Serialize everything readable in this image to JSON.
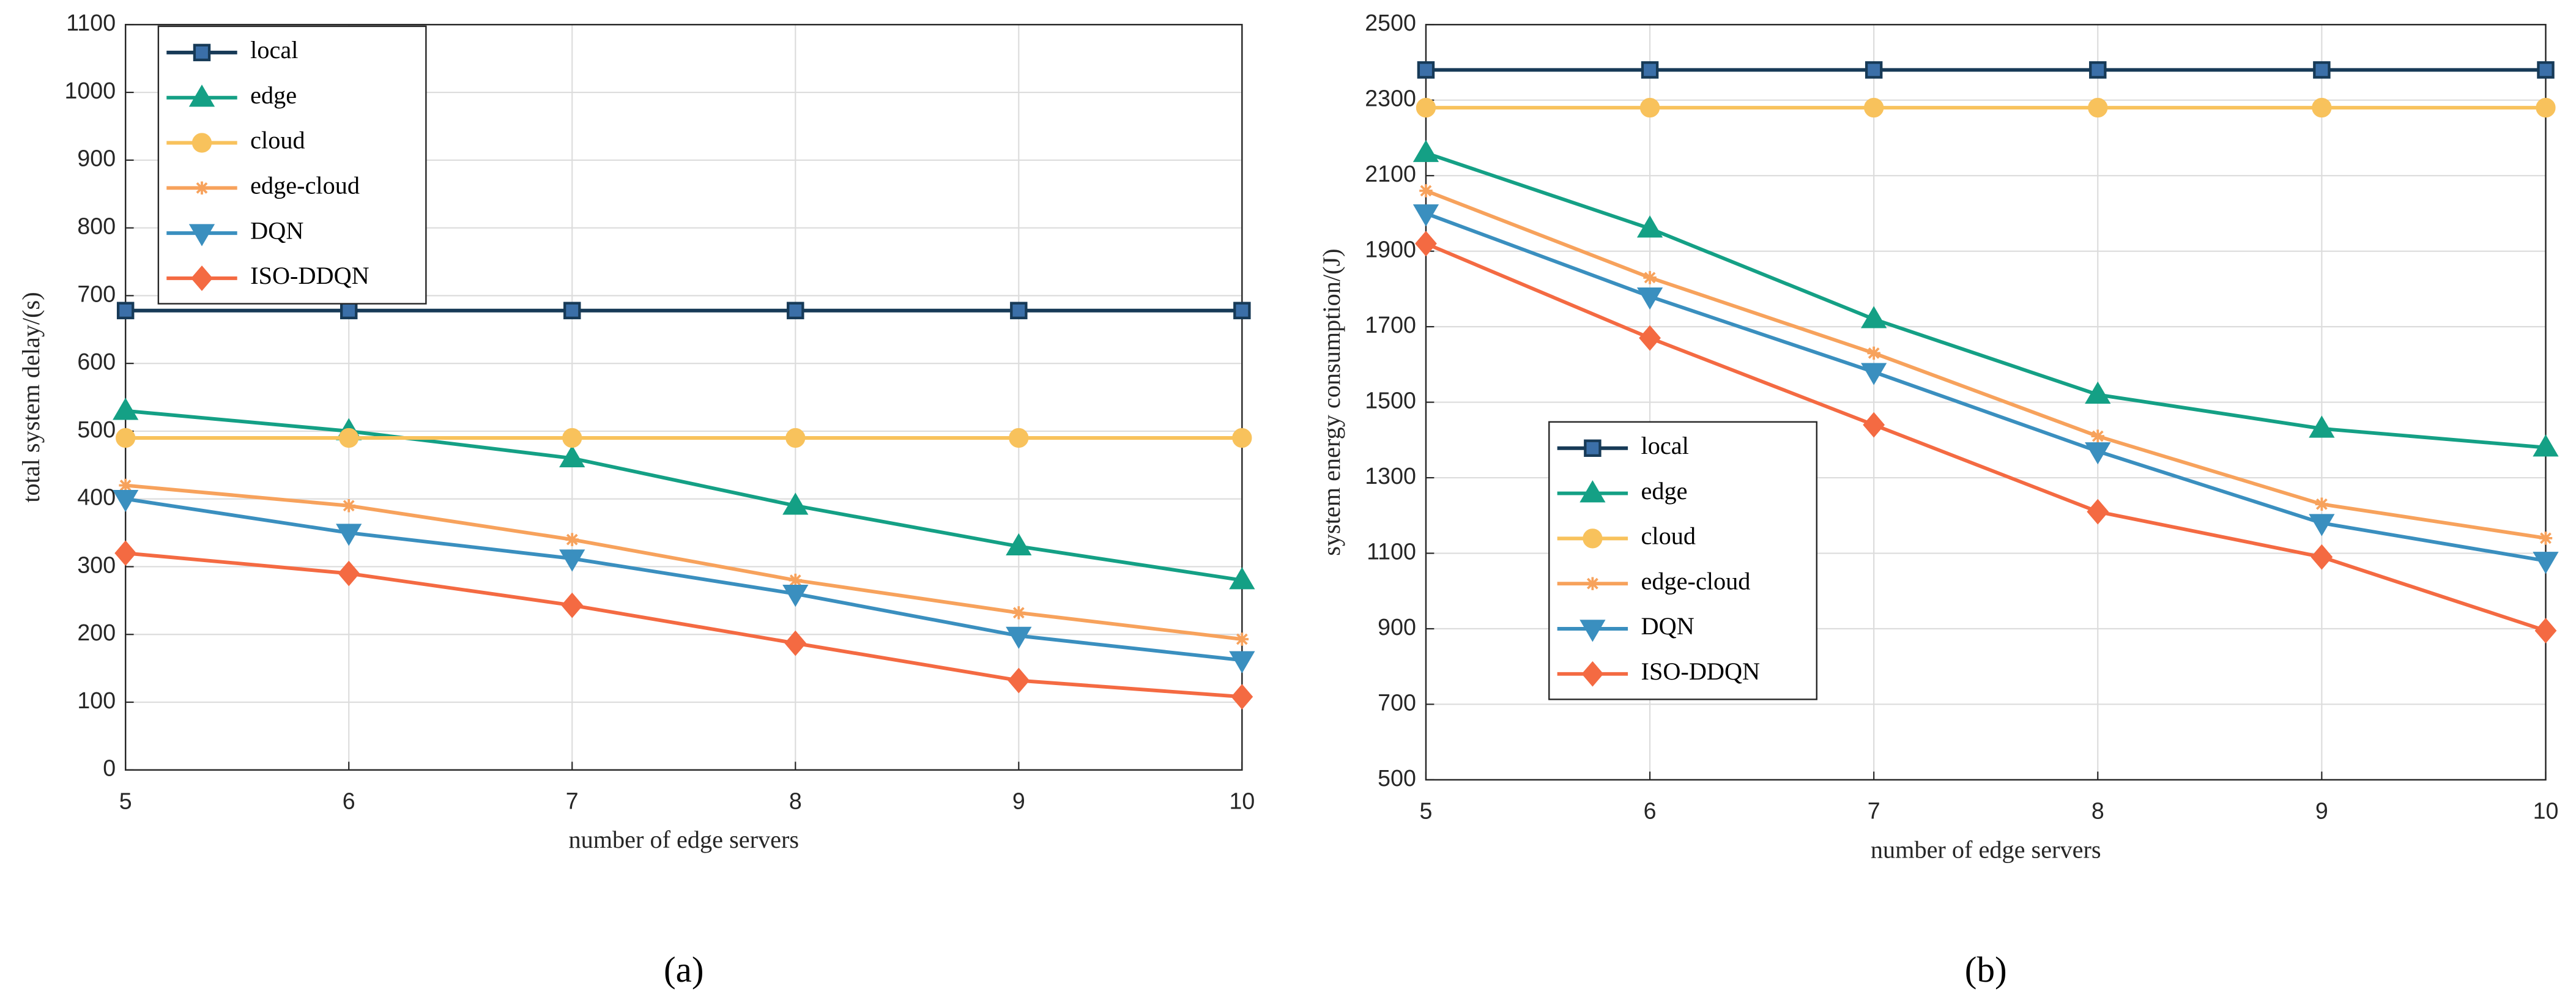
{
  "chart_data": [
    {
      "type": "line",
      "caption": "(a)",
      "x_label": "number of edge servers",
      "y_label": "total system delay/(s)",
      "x": [
        5,
        6,
        7,
        8,
        9,
        10
      ],
      "xlim": [
        5,
        10
      ],
      "xticks": [
        5,
        6,
        7,
        8,
        9,
        10
      ],
      "ylim": [
        0,
        1100
      ],
      "yticks": [
        0,
        100,
        200,
        300,
        400,
        500,
        600,
        700,
        800,
        900,
        1000,
        1100
      ],
      "grid": true,
      "legend": "upper left",
      "series": [
        {
          "name": "local",
          "color": "#173a57",
          "marker": "square",
          "values": [
            678,
            678,
            678,
            678,
            678,
            678
          ]
        },
        {
          "name": "edge",
          "color": "#14a085",
          "marker": "triangle-up",
          "values": [
            530,
            500,
            460,
            390,
            330,
            280
          ]
        },
        {
          "name": "cloud",
          "color": "#f8c25c",
          "marker": "circle",
          "values": [
            490,
            490,
            490,
            490,
            490,
            490
          ]
        },
        {
          "name": "edge-cloud",
          "color": "#f7a25c",
          "marker": "asterisk",
          "values": [
            420,
            390,
            340,
            280,
            232,
            193
          ]
        },
        {
          "name": "DQN",
          "color": "#3a8fbf",
          "marker": "triangle-down",
          "values": [
            400,
            350,
            312,
            260,
            198,
            162
          ]
        },
        {
          "name": "ISO-DDQN",
          "color": "#f46a42",
          "marker": "diamond",
          "values": [
            320,
            290,
            243,
            187,
            132,
            108
          ]
        }
      ]
    },
    {
      "type": "line",
      "caption": "(b)",
      "x_label": "number of edge servers",
      "y_label": "system energy consumption/(J)",
      "x": [
        5,
        6,
        7,
        8,
        9,
        10
      ],
      "xlim": [
        5,
        10
      ],
      "xticks": [
        5,
        6,
        7,
        8,
        9,
        10
      ],
      "ylim": [
        500,
        2500
      ],
      "yticks": [
        500,
        700,
        900,
        1100,
        1300,
        1500,
        1700,
        1900,
        2100,
        2300,
        2500
      ],
      "grid": true,
      "legend": "lower left",
      "series": [
        {
          "name": "local",
          "color": "#173a57",
          "marker": "square",
          "values": [
            2380,
            2380,
            2380,
            2380,
            2380,
            2380
          ]
        },
        {
          "name": "edge",
          "color": "#14a085",
          "marker": "triangle-up",
          "values": [
            2160,
            1960,
            1720,
            1520,
            1430,
            1380
          ]
        },
        {
          "name": "cloud",
          "color": "#f8c25c",
          "marker": "circle",
          "values": [
            2280,
            2280,
            2280,
            2280,
            2280,
            2280
          ]
        },
        {
          "name": "edge-cloud",
          "color": "#f7a25c",
          "marker": "asterisk",
          "values": [
            2060,
            1830,
            1630,
            1410,
            1230,
            1140
          ]
        },
        {
          "name": "DQN",
          "color": "#3a8fbf",
          "marker": "triangle-down",
          "values": [
            2000,
            1780,
            1580,
            1370,
            1180,
            1080
          ]
        },
        {
          "name": "ISO-DDQN",
          "color": "#f46a42",
          "marker": "diamond",
          "values": [
            1920,
            1670,
            1440,
            1210,
            1090,
            895
          ]
        }
      ]
    }
  ]
}
